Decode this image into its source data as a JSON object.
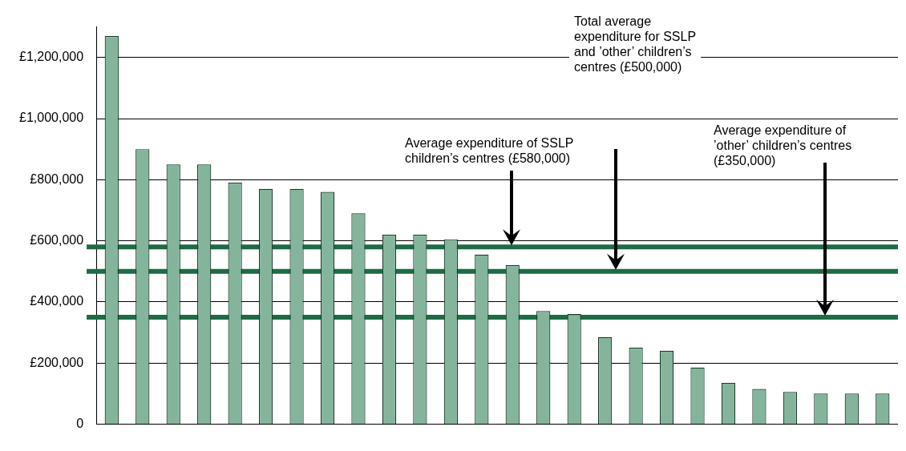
{
  "chart_data": {
    "type": "bar",
    "categories": [
      null,
      null,
      null,
      null,
      null,
      null,
      null,
      null,
      null,
      null,
      null,
      null,
      null,
      null,
      null,
      null,
      null,
      null,
      null,
      null,
      null,
      null,
      null,
      null,
      null,
      null
    ],
    "series": [
      {
        "color": "#84b59c",
        "values": [
          1270000,
          900000,
          850000,
          850000,
          790000,
          770000,
          770000,
          760000,
          690000,
          620000,
          620000,
          605000,
          555000,
          520000,
          370000,
          360000,
          285000,
          250000,
          240000,
          185000,
          135000,
          115000,
          105000,
          100000,
          100000,
          100000
        ]
      }
    ],
    "ylim": [
      0,
      1300000
    ],
    "yticks": [
      {
        "value": 0,
        "label": "0"
      },
      {
        "value": 200000,
        "label": "£200,000"
      },
      {
        "value": 400000,
        "label": "£400,000"
      },
      {
        "value": 600000,
        "label": "£600,000"
      },
      {
        "value": 800000,
        "label": "£800,000"
      },
      {
        "value": 1000000,
        "label": "£1,000,000"
      },
      {
        "value": 1200000,
        "label": "£1,200,000"
      }
    ],
    "ref_lines": [
      {
        "axis": "y",
        "value": 580000,
        "color": "#1e6b45"
      },
      {
        "axis": "y",
        "value": 500000,
        "color": "#1e6b45"
      },
      {
        "axis": "y",
        "value": 350000,
        "color": "#1e6b45"
      }
    ],
    "annotations": [
      "Average expenditure of SSLP children’s centres (£580,000)",
      "Total average expenditure for SSLP and ’other’ children’s centres (£500,000)",
      "Average expenditure of ’other’ children’s centres (£350,000)"
    ],
    "grid": "y",
    "legend": false,
    "tick_labels": "y"
  }
}
